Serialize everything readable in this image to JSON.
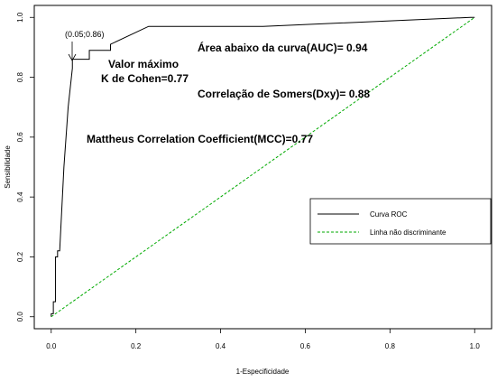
{
  "chart_data": {
    "type": "line",
    "title": "",
    "xlabel": "1-Especificidade",
    "ylabel": "Sensibilidade",
    "xlim": [
      -0.04,
      1.04
    ],
    "ylim": [
      -0.04,
      1.04
    ],
    "x_ticks": [
      "0.0",
      "0.2",
      "0.4",
      "0.6",
      "0.8",
      "1.0"
    ],
    "y_ticks": [
      "0.0",
      "0.2",
      "0.4",
      "0.6",
      "0.8",
      "1.0"
    ],
    "grid": false,
    "legend_position": "right",
    "series": [
      {
        "name": "Curva ROC",
        "color": "#000000",
        "style": "solid",
        "x": [
          0.0,
          0.0,
          0.005,
          0.005,
          0.01,
          0.01,
          0.015,
          0.015,
          0.02,
          0.03,
          0.04,
          0.05,
          0.05,
          0.05,
          0.09,
          0.09,
          0.14,
          0.14,
          0.23,
          0.23,
          0.5,
          0.99,
          1.0
        ],
        "y": [
          0.0,
          0.01,
          0.01,
          0.05,
          0.05,
          0.2,
          0.2,
          0.22,
          0.22,
          0.5,
          0.7,
          0.83,
          0.86,
          0.86,
          0.86,
          0.89,
          0.89,
          0.91,
          0.97,
          0.97,
          0.97,
          1.0,
          1.0
        ]
      },
      {
        "name": "Linha não discriminante",
        "color": "#00aa00",
        "style": "dashed",
        "x": [
          0,
          1
        ],
        "y": [
          0,
          1
        ]
      }
    ],
    "annotations": [
      {
        "text": "(0.05;0.86)",
        "arrow_to": [
          0.05,
          0.86
        ]
      },
      {
        "text": "Valor máximo"
      },
      {
        "text": "K de Cohen=0.77"
      },
      {
        "text": "Área abaixo da curva(AUC)= 0.94"
      },
      {
        "text": "Correlação de Somers(Dxy)= 0.88"
      },
      {
        "text": "Mattheus Correlation Coefficient(MCC)=0.77"
      }
    ]
  }
}
